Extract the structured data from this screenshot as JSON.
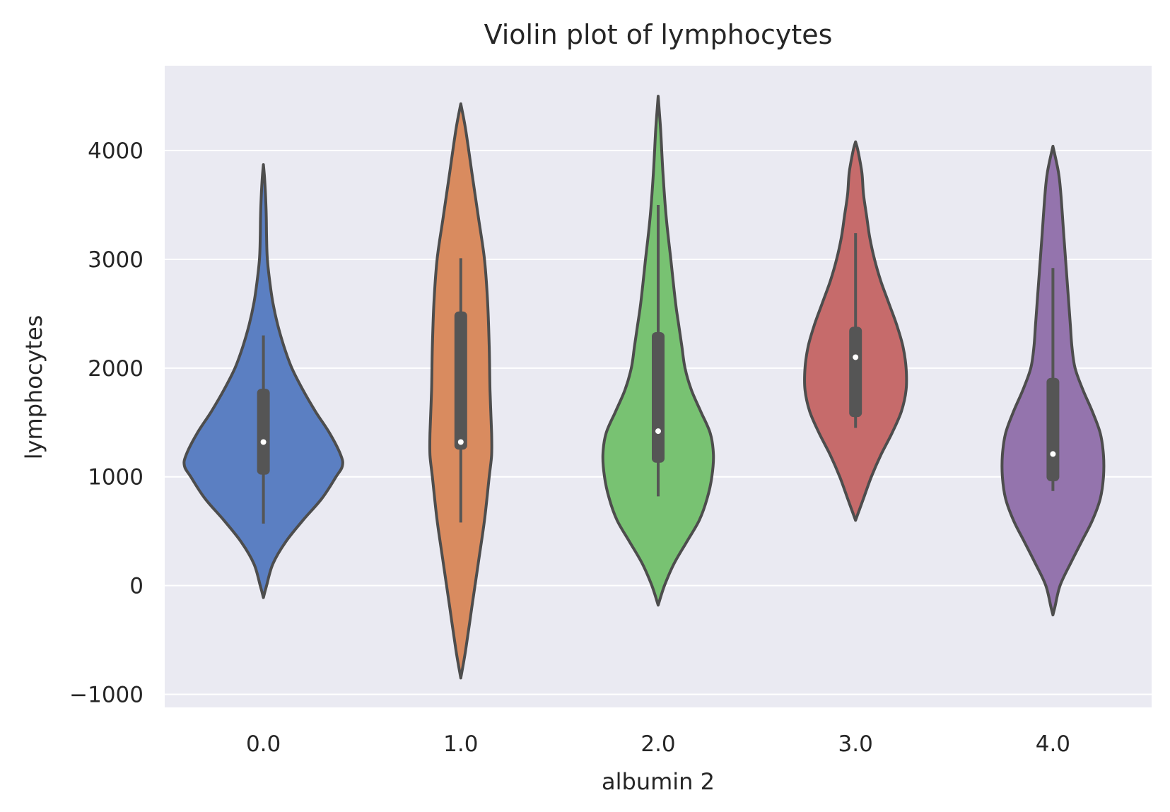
{
  "chart_data": {
    "type": "violin",
    "title": "Violin plot of lymphocytes",
    "xlabel": "albumin 2",
    "ylabel": "lymphocytes",
    "categories": [
      "0.0",
      "1.0",
      "2.0",
      "3.0",
      "4.0"
    ],
    "yticks": [
      -1000,
      0,
      1000,
      2000,
      3000,
      4000
    ],
    "yticklabels": [
      "−1000",
      "0",
      "1000",
      "2000",
      "3000",
      "4000"
    ],
    "ylim": [
      -1120,
      4780
    ],
    "grid": true,
    "colors": {
      "background": "#eaeaf2",
      "grid": "#ffffff",
      "outline": "#4d4d4d",
      "box": "#555555",
      "median_dot": "#ffffff"
    },
    "violins": [
      {
        "category": "0.0",
        "color": "#5b7fc2",
        "min": 570,
        "q1": 1020,
        "median": 1320,
        "q3": 1810,
        "max": 2300,
        "profile": [
          [
            -110,
            0.0
          ],
          [
            0,
            0.02
          ],
          [
            200,
            0.06
          ],
          [
            400,
            0.14
          ],
          [
            600,
            0.25
          ],
          [
            800,
            0.37
          ],
          [
            1000,
            0.46
          ],
          [
            1100,
            0.5
          ],
          [
            1200,
            0.49
          ],
          [
            1400,
            0.42
          ],
          [
            1600,
            0.33
          ],
          [
            1800,
            0.25
          ],
          [
            2000,
            0.18
          ],
          [
            2200,
            0.13
          ],
          [
            2400,
            0.09
          ],
          [
            2600,
            0.06
          ],
          [
            2800,
            0.04
          ],
          [
            3000,
            0.025
          ],
          [
            3200,
            0.02
          ],
          [
            3400,
            0.018
          ],
          [
            3600,
            0.013
          ],
          [
            3750,
            0.007
          ],
          [
            3870,
            0.0
          ]
        ]
      },
      {
        "category": "1.0",
        "color": "#d98b5f",
        "min": 580,
        "q1": 1250,
        "median": 1320,
        "q3": 2520,
        "max": 3010,
        "profile": [
          [
            -850,
            0.0
          ],
          [
            -600,
            0.03
          ],
          [
            -200,
            0.07
          ],
          [
            200,
            0.11
          ],
          [
            600,
            0.15
          ],
          [
            1000,
            0.18
          ],
          [
            1200,
            0.195
          ],
          [
            1400,
            0.195
          ],
          [
            1800,
            0.185
          ],
          [
            2200,
            0.18
          ],
          [
            2600,
            0.17
          ],
          [
            3000,
            0.15
          ],
          [
            3400,
            0.11
          ],
          [
            3800,
            0.07
          ],
          [
            4200,
            0.03
          ],
          [
            4430,
            0.0
          ]
        ]
      },
      {
        "category": "2.0",
        "color": "#78c272",
        "min": 820,
        "q1": 1130,
        "median": 1420,
        "q3": 2330,
        "max": 3500,
        "profile": [
          [
            -180,
            0.0
          ],
          [
            0,
            0.04
          ],
          [
            200,
            0.1
          ],
          [
            400,
            0.18
          ],
          [
            600,
            0.26
          ],
          [
            800,
            0.31
          ],
          [
            1000,
            0.34
          ],
          [
            1200,
            0.35
          ],
          [
            1400,
            0.33
          ],
          [
            1600,
            0.27
          ],
          [
            1800,
            0.21
          ],
          [
            2000,
            0.17
          ],
          [
            2200,
            0.15
          ],
          [
            2400,
            0.13
          ],
          [
            2600,
            0.11
          ],
          [
            3000,
            0.08
          ],
          [
            3400,
            0.05
          ],
          [
            3800,
            0.03
          ],
          [
            4200,
            0.015
          ],
          [
            4500,
            0.0
          ]
        ]
      },
      {
        "category": "3.0",
        "color": "#c66b6b",
        "min": 1450,
        "q1": 1550,
        "median": 2100,
        "q3": 2380,
        "max": 3240,
        "profile": [
          [
            600,
            0.0
          ],
          [
            700,
            0.025
          ],
          [
            800,
            0.05
          ],
          [
            1000,
            0.1
          ],
          [
            1200,
            0.16
          ],
          [
            1400,
            0.23
          ],
          [
            1600,
            0.29
          ],
          [
            1800,
            0.32
          ],
          [
            2000,
            0.32
          ],
          [
            2200,
            0.3
          ],
          [
            2400,
            0.26
          ],
          [
            2600,
            0.21
          ],
          [
            2800,
            0.16
          ],
          [
            3000,
            0.12
          ],
          [
            3200,
            0.09
          ],
          [
            3400,
            0.07
          ],
          [
            3600,
            0.05
          ],
          [
            3800,
            0.04
          ],
          [
            4000,
            0.015
          ],
          [
            4080,
            0.0
          ]
        ]
      },
      {
        "category": "4.0",
        "color": "#9474ad",
        "min": 870,
        "q1": 960,
        "median": 1210,
        "q3": 1910,
        "max": 2920,
        "profile": [
          [
            -270,
            0.0
          ],
          [
            -200,
            0.012
          ],
          [
            0,
            0.045
          ],
          [
            200,
            0.11
          ],
          [
            400,
            0.18
          ],
          [
            600,
            0.25
          ],
          [
            800,
            0.3
          ],
          [
            1000,
            0.32
          ],
          [
            1200,
            0.32
          ],
          [
            1400,
            0.3
          ],
          [
            1600,
            0.25
          ],
          [
            1800,
            0.19
          ],
          [
            2000,
            0.14
          ],
          [
            2200,
            0.12
          ],
          [
            2400,
            0.11
          ],
          [
            2800,
            0.09
          ],
          [
            3200,
            0.07
          ],
          [
            3600,
            0.05
          ],
          [
            3800,
            0.035
          ],
          [
            4040,
            0.0
          ]
        ]
      }
    ]
  }
}
